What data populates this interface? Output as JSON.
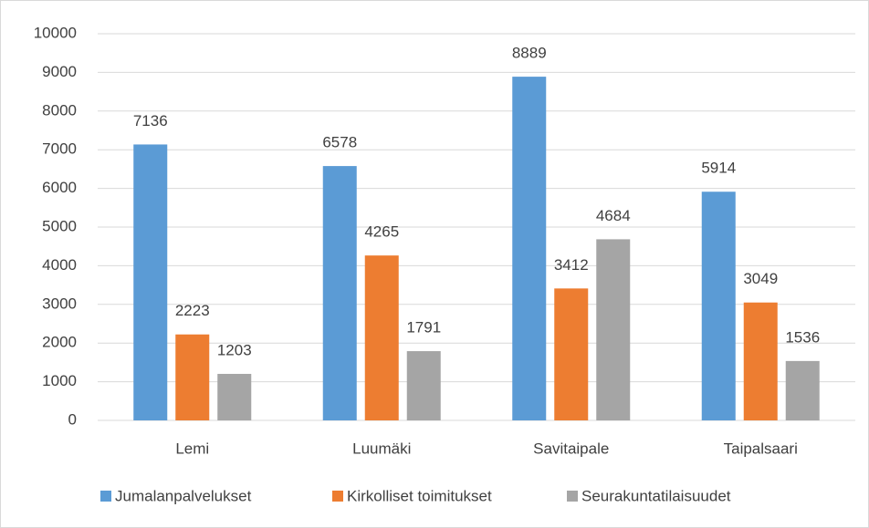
{
  "chart_data": {
    "type": "bar",
    "categories": [
      "Lemi",
      "Luumäki",
      "Savitaipale",
      "Taipalsaari"
    ],
    "series": [
      {
        "name": "Jumalanpalvelukset",
        "color": "#5b9bd5",
        "values": [
          7136,
          6578,
          8889,
          5914
        ]
      },
      {
        "name": "Kirkolliset toimitukset",
        "color": "#ed7d31",
        "values": [
          2223,
          4265,
          3412,
          3049
        ]
      },
      {
        "name": "Seurakuntatilaisuudet",
        "color": "#a5a5a5",
        "values": [
          1203,
          1791,
          4684,
          1536
        ]
      }
    ],
    "ylim": [
      0,
      10000
    ],
    "yticks": [
      0,
      1000,
      2000,
      3000,
      4000,
      5000,
      6000,
      7000,
      8000,
      9000,
      10000
    ],
    "grid": true,
    "legend": "bottom"
  }
}
